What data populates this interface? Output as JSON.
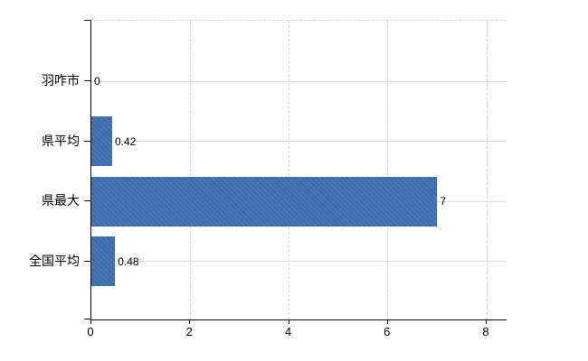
{
  "chart_data": {
    "type": "bar",
    "orientation": "horizontal",
    "title": "",
    "categories": [
      "羽咋市",
      "県平均",
      "県最大",
      "全国平均"
    ],
    "values": [
      0,
      0.42,
      7,
      0.48
    ],
    "data_labels": [
      "0",
      "0.42",
      "7",
      "0.48"
    ],
    "x_ticks": [
      "0",
      "2",
      "4",
      "6",
      "8"
    ],
    "x_tick_values": [
      0,
      2,
      4,
      6,
      8
    ],
    "xlim": [
      0,
      8.4
    ],
    "grid": true,
    "legend": false,
    "colors": {
      "bar": "#3e6eaf",
      "axis": "#000000",
      "h_grid": "#d6ded6",
      "v_grid": "#d3d0d6",
      "background": "#ffffff",
      "label_text": "#000000"
    }
  }
}
